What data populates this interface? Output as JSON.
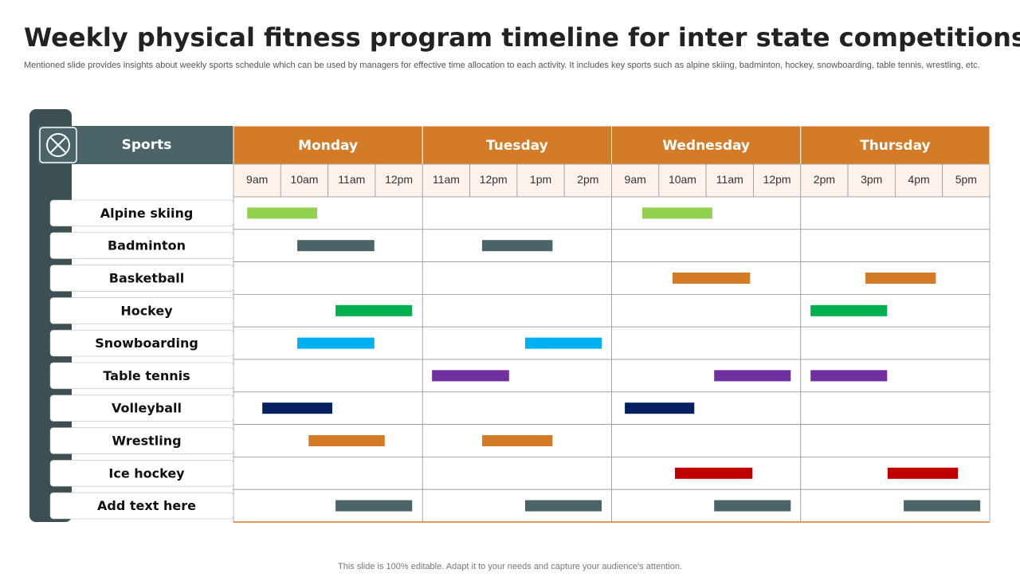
{
  "title": "Weekly physical fitness program timeline for inter state competitions",
  "subtitle": "Mentioned slide provides insights about weekly sports schedule which can be used by managers for effective time allocation to each activity.  It includes key sports such as alpine skiing, badminton, hockey, snowboarding, table tennis, wrestling, etc.",
  "table": {
    "corner": "Sports",
    "days": [
      {
        "name": "Monday",
        "times": [
          "9am",
          "10am",
          "11am",
          "12pm"
        ]
      },
      {
        "name": "Tuesday",
        "times": [
          "11am",
          "12pm",
          "1pm",
          "2pm"
        ]
      },
      {
        "name": "Wednesday",
        "times": [
          "9am",
          "10am",
          "11am",
          "12pm"
        ]
      },
      {
        "name": "Thursday",
        "times": [
          "2pm",
          "3pm",
          "4pm",
          "5pm"
        ]
      }
    ],
    "rows": [
      {
        "label": "Alpine skiing",
        "color": "#92d050",
        "slots": [
          [
            0.29,
            1.77
          ],
          null,
          [
            0.65,
            2.13
          ],
          null
        ]
      },
      {
        "label": "Badminton",
        "color": "#4a6468",
        "slots": [
          [
            1.35,
            2.98
          ],
          [
            1.26,
            2.75
          ],
          null,
          null
        ]
      },
      {
        "label": "Basketball",
        "color": "#d47b27",
        "slots": [
          null,
          null,
          [
            1.29,
            2.93
          ],
          [
            1.37,
            2.86
          ]
        ]
      },
      {
        "label": "Hockey",
        "color": "#00b050",
        "slots": [
          [
            2.16,
            3.78
          ],
          null,
          null,
          [
            0.21,
            1.83
          ]
        ]
      },
      {
        "label": "Snowboarding",
        "color": "#00b0f0",
        "slots": [
          [
            1.35,
            2.98
          ],
          [
            2.17,
            3.79
          ],
          null,
          null
        ]
      },
      {
        "label": "Table tennis",
        "color": "#7030a0",
        "slots": [
          null,
          [
            0.2,
            1.83
          ],
          [
            2.17,
            3.79
          ],
          [
            0.21,
            1.83
          ]
        ]
      },
      {
        "label": "Volleyball",
        "color": "#002060",
        "slots": [
          [
            0.61,
            2.09
          ],
          null,
          [
            0.28,
            1.75
          ],
          null
        ]
      },
      {
        "label": "Wrestling",
        "color": "#d47b27",
        "slots": [
          [
            1.59,
            3.2
          ],
          [
            1.26,
            2.75
          ],
          null,
          null
        ]
      },
      {
        "label": "Ice hockey",
        "color": "#c00000",
        "slots": [
          null,
          null,
          [
            1.34,
            2.98
          ],
          [
            1.84,
            3.33
          ]
        ]
      },
      {
        "label": "Add text here",
        "color": "#4a6468",
        "slots": [
          [
            2.16,
            3.78
          ],
          [
            2.17,
            3.79
          ],
          [
            2.17,
            3.79
          ],
          [
            2.18,
            3.8
          ]
        ]
      }
    ]
  },
  "footer": "This slide is 100% editable. Adapt it to your needs and capture your audience's attention."
}
